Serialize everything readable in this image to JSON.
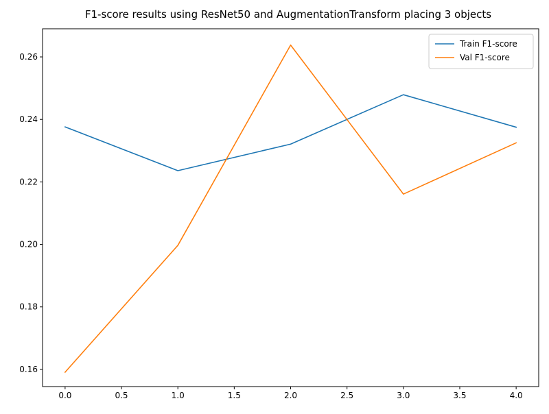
{
  "chart_data": {
    "type": "line",
    "title": "F1-score results using ResNet50 and AugmentationTransform placing 3 objects",
    "xlabel": "",
    "ylabel": "",
    "x": [
      0,
      1,
      2,
      3,
      4
    ],
    "xlim": [
      -0.2,
      4.2
    ],
    "ylim": [
      0.1545,
      0.269
    ],
    "xticks": [
      "0.0",
      "0.5",
      "1.0",
      "1.5",
      "2.0",
      "2.5",
      "3.0",
      "3.5",
      "4.0"
    ],
    "yticks": [
      "0.16",
      "0.18",
      "0.20",
      "0.22",
      "0.24",
      "0.26"
    ],
    "grid": false,
    "legend_position": "top-right",
    "series": [
      {
        "name": "Train F1-score",
        "color": "#1f77b4",
        "values": [
          0.2376,
          0.2236,
          0.2321,
          0.2479,
          0.2375
        ]
      },
      {
        "name": "Val F1-score",
        "color": "#ff7f0e",
        "values": [
          0.1591,
          0.1997,
          0.2638,
          0.2161,
          0.2325
        ]
      }
    ]
  }
}
